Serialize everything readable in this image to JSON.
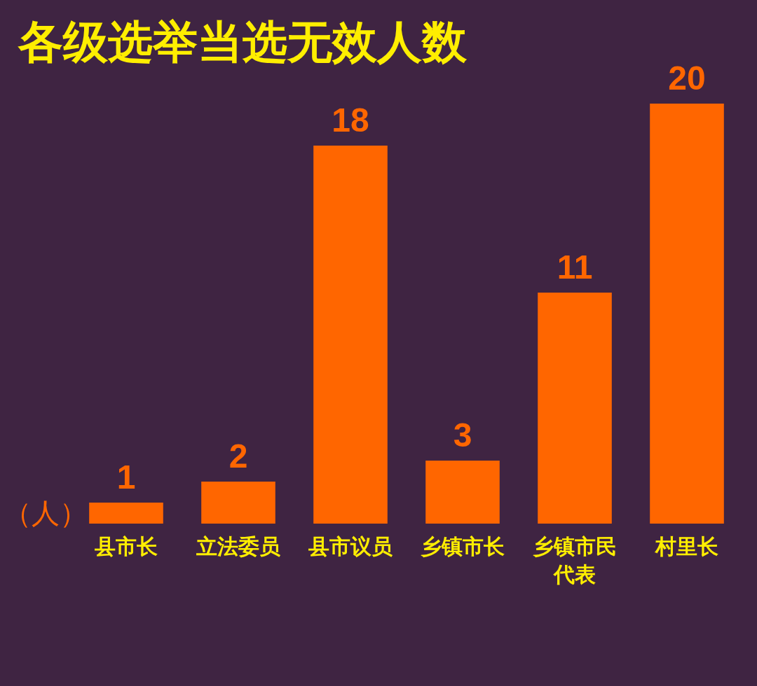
{
  "chart_data": {
    "type": "bar",
    "title": "各级选举当选无效人数",
    "ylabel": "（人）",
    "categories": [
      "县市长",
      "立法委员",
      "县市议员",
      "乡镇市长",
      "乡镇市民代表",
      "村里长"
    ],
    "values": [
      1,
      2,
      18,
      3,
      11,
      20
    ],
    "color": "#ff6600",
    "data_labels": true
  }
}
